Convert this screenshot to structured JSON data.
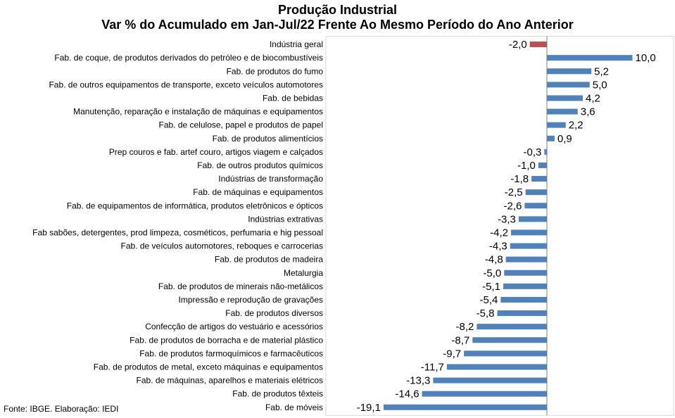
{
  "chart_data": {
    "type": "bar",
    "orientation": "horizontal",
    "title": "Produção Industrial",
    "subtitle": "Var % do Acumulado em Jan-Jul/22 Frente Ao Mesmo Período do Ano Anterior",
    "categories": [
      "Indústria geral",
      "Fab. de coque, de produtos derivados do petróleo e de biocombustíveis",
      "Fab. de produtos do fumo",
      "Fab. de outros equipamentos de transporte, exceto veículos automotores",
      "Fab. de bebidas",
      "Manutenção, reparação e instalação de máquinas e equipamentos",
      "Fab. de celulose, papel e produtos de papel",
      "Fab. de produtos alimentícios",
      "Prep couros e fab. artef couro, artigos viagem e calçados",
      "Fab. de outros produtos químicos",
      "Indústrias de transformação",
      "Fab. de máquinas e equipamentos",
      "Fab. de equipamentos de informática, produtos eletrônicos e ópticos",
      "Indústrias extrativas",
      "Fab sabões, detergentes, prod limpeza, cosméticos, perfumaria e hig pessoal",
      "Fab. de veículos automotores, reboques e carrocerias",
      "Fab. de produtos de madeira",
      "Metalurgia",
      "Fab. de produtos de minerais não-metálicos",
      "Impressão e reprodução de gravações",
      "Fab. de produtos diversos",
      "Confecção de artigos do vestuário e acessórios",
      "Fab. de produtos de borracha e de material plástico",
      "Fab. de produtos farmoquímicos e farmacêuticos",
      "Fab. de produtos de metal, exceto máquinas e equipamentos",
      "Fab. de máquinas, aparelhos e materiais elétricos",
      "Fab. de produtos têxteis",
      "Fab. de móveis"
    ],
    "values": [
      -2.0,
      10.0,
      5.2,
      5.0,
      4.2,
      3.6,
      2.2,
      0.9,
      -0.3,
      -1.0,
      -1.8,
      -2.5,
      -2.6,
      -3.3,
      -4.2,
      -4.3,
      -4.8,
      -5.0,
      -5.1,
      -5.4,
      -5.8,
      -8.2,
      -8.7,
      -9.7,
      -11.7,
      -13.3,
      -14.6,
      -19.1
    ],
    "value_labels": [
      "-2,0",
      "10,0",
      "5,2",
      "5,0",
      "4,2",
      "3,6",
      "2,2",
      "0,9",
      "-0,3",
      "-1,0",
      "-1,8",
      "-2,5",
      "-2,6",
      "-3,3",
      "-4,2",
      "-4,3",
      "-4,8",
      "-5,0",
      "-5,1",
      "-5,4",
      "-5,8",
      "-8,2",
      "-8,7",
      "-9,7",
      "-11,7",
      "-13,3",
      "-14,6",
      "-19,1"
    ],
    "highlight_index": 0,
    "colors": {
      "bar": "#4F81BD",
      "highlight": "#C0504D",
      "grid": "#D9D9D9",
      "axis": "#7F7F7F"
    },
    "grid": true
  },
  "source": "Fonte: IBGE. Elaboração: IEDI"
}
